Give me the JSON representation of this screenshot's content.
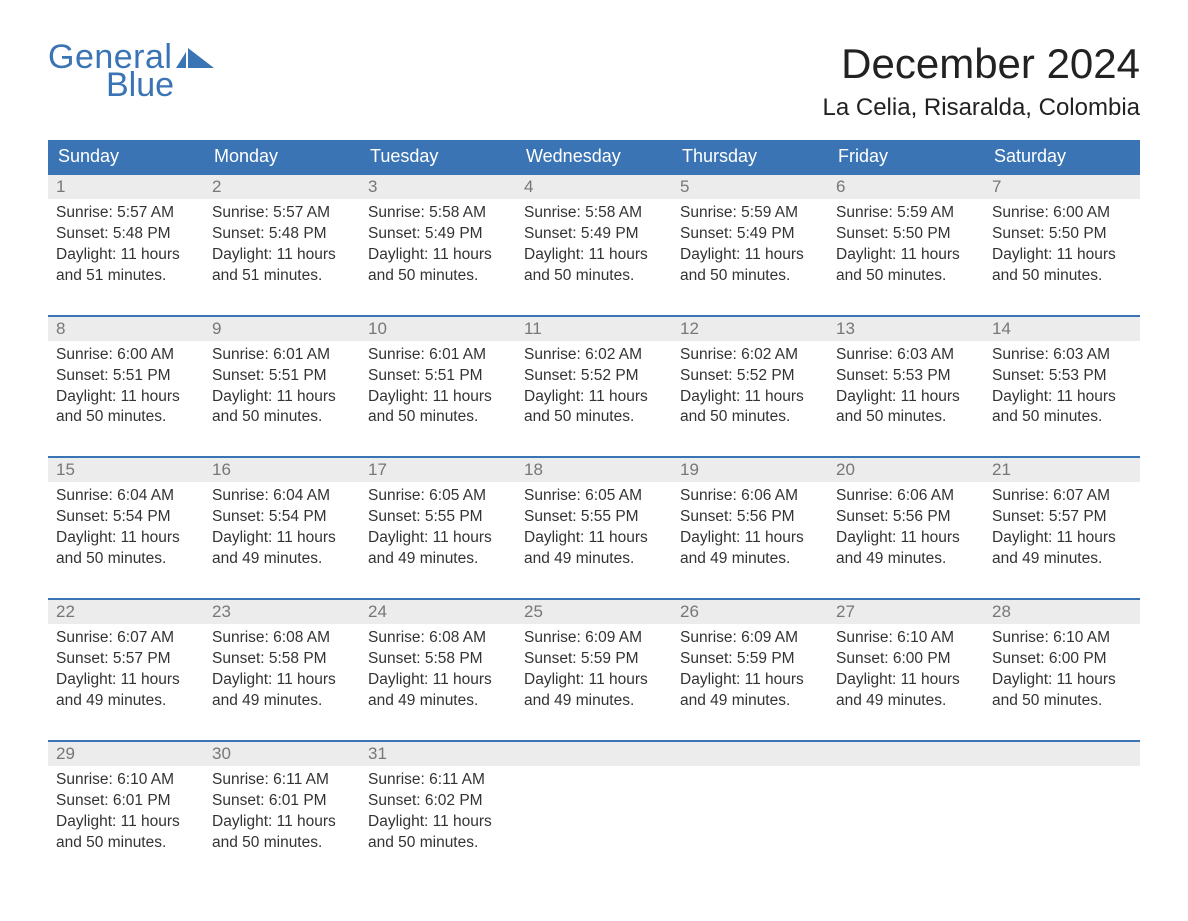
{
  "logo": {
    "word1": "General",
    "word2": "Blue",
    "color": "#3a74b4"
  },
  "title": "December 2024",
  "location": "La Celia, Risaralda, Colombia",
  "colors": {
    "header_bg": "#3a74b4",
    "header_text": "#ffffff",
    "daynum_bg": "#ececec",
    "daynum_text": "#777777",
    "body_text": "#333333",
    "week_border": "#3a74b4",
    "page_bg": "#ffffff"
  },
  "fonts": {
    "title_size_pt": 32,
    "location_size_pt": 18,
    "header_size_pt": 14,
    "daynum_size_pt": 13,
    "body_size_pt": 12
  },
  "day_names": [
    "Sunday",
    "Monday",
    "Tuesday",
    "Wednesday",
    "Thursday",
    "Friday",
    "Saturday"
  ],
  "weeks": [
    [
      {
        "n": "1",
        "sunrise": "5:57 AM",
        "sunset": "5:48 PM",
        "daylight": "11 hours and 51 minutes."
      },
      {
        "n": "2",
        "sunrise": "5:57 AM",
        "sunset": "5:48 PM",
        "daylight": "11 hours and 51 minutes."
      },
      {
        "n": "3",
        "sunrise": "5:58 AM",
        "sunset": "5:49 PM",
        "daylight": "11 hours and 50 minutes."
      },
      {
        "n": "4",
        "sunrise": "5:58 AM",
        "sunset": "5:49 PM",
        "daylight": "11 hours and 50 minutes."
      },
      {
        "n": "5",
        "sunrise": "5:59 AM",
        "sunset": "5:49 PM",
        "daylight": "11 hours and 50 minutes."
      },
      {
        "n": "6",
        "sunrise": "5:59 AM",
        "sunset": "5:50 PM",
        "daylight": "11 hours and 50 minutes."
      },
      {
        "n": "7",
        "sunrise": "6:00 AM",
        "sunset": "5:50 PM",
        "daylight": "11 hours and 50 minutes."
      }
    ],
    [
      {
        "n": "8",
        "sunrise": "6:00 AM",
        "sunset": "5:51 PM",
        "daylight": "11 hours and 50 minutes."
      },
      {
        "n": "9",
        "sunrise": "6:01 AM",
        "sunset": "5:51 PM",
        "daylight": "11 hours and 50 minutes."
      },
      {
        "n": "10",
        "sunrise": "6:01 AM",
        "sunset": "5:51 PM",
        "daylight": "11 hours and 50 minutes."
      },
      {
        "n": "11",
        "sunrise": "6:02 AM",
        "sunset": "5:52 PM",
        "daylight": "11 hours and 50 minutes."
      },
      {
        "n": "12",
        "sunrise": "6:02 AM",
        "sunset": "5:52 PM",
        "daylight": "11 hours and 50 minutes."
      },
      {
        "n": "13",
        "sunrise": "6:03 AM",
        "sunset": "5:53 PM",
        "daylight": "11 hours and 50 minutes."
      },
      {
        "n": "14",
        "sunrise": "6:03 AM",
        "sunset": "5:53 PM",
        "daylight": "11 hours and 50 minutes."
      }
    ],
    [
      {
        "n": "15",
        "sunrise": "6:04 AM",
        "sunset": "5:54 PM",
        "daylight": "11 hours and 50 minutes."
      },
      {
        "n": "16",
        "sunrise": "6:04 AM",
        "sunset": "5:54 PM",
        "daylight": "11 hours and 49 minutes."
      },
      {
        "n": "17",
        "sunrise": "6:05 AM",
        "sunset": "5:55 PM",
        "daylight": "11 hours and 49 minutes."
      },
      {
        "n": "18",
        "sunrise": "6:05 AM",
        "sunset": "5:55 PM",
        "daylight": "11 hours and 49 minutes."
      },
      {
        "n": "19",
        "sunrise": "6:06 AM",
        "sunset": "5:56 PM",
        "daylight": "11 hours and 49 minutes."
      },
      {
        "n": "20",
        "sunrise": "6:06 AM",
        "sunset": "5:56 PM",
        "daylight": "11 hours and 49 minutes."
      },
      {
        "n": "21",
        "sunrise": "6:07 AM",
        "sunset": "5:57 PM",
        "daylight": "11 hours and 49 minutes."
      }
    ],
    [
      {
        "n": "22",
        "sunrise": "6:07 AM",
        "sunset": "5:57 PM",
        "daylight": "11 hours and 49 minutes."
      },
      {
        "n": "23",
        "sunrise": "6:08 AM",
        "sunset": "5:58 PM",
        "daylight": "11 hours and 49 minutes."
      },
      {
        "n": "24",
        "sunrise": "6:08 AM",
        "sunset": "5:58 PM",
        "daylight": "11 hours and 49 minutes."
      },
      {
        "n": "25",
        "sunrise": "6:09 AM",
        "sunset": "5:59 PM",
        "daylight": "11 hours and 49 minutes."
      },
      {
        "n": "26",
        "sunrise": "6:09 AM",
        "sunset": "5:59 PM",
        "daylight": "11 hours and 49 minutes."
      },
      {
        "n": "27",
        "sunrise": "6:10 AM",
        "sunset": "6:00 PM",
        "daylight": "11 hours and 49 minutes."
      },
      {
        "n": "28",
        "sunrise": "6:10 AM",
        "sunset": "6:00 PM",
        "daylight": "11 hours and 50 minutes."
      }
    ],
    [
      {
        "n": "29",
        "sunrise": "6:10 AM",
        "sunset": "6:01 PM",
        "daylight": "11 hours and 50 minutes."
      },
      {
        "n": "30",
        "sunrise": "6:11 AM",
        "sunset": "6:01 PM",
        "daylight": "11 hours and 50 minutes."
      },
      {
        "n": "31",
        "sunrise": "6:11 AM",
        "sunset": "6:02 PM",
        "daylight": "11 hours and 50 minutes."
      },
      {
        "empty": true
      },
      {
        "empty": true
      },
      {
        "empty": true
      },
      {
        "empty": true
      }
    ]
  ],
  "labels": {
    "sunrise": "Sunrise: ",
    "sunset": "Sunset: ",
    "daylight": "Daylight: "
  }
}
